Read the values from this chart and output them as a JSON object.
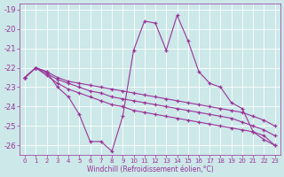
{
  "x": [
    0,
    1,
    2,
    3,
    4,
    5,
    6,
    7,
    8,
    9,
    10,
    11,
    12,
    13,
    14,
    15,
    16,
    17,
    18,
    19,
    20,
    21,
    22,
    23
  ],
  "line1": [
    -22.5,
    -22.0,
    -22.2,
    -23.0,
    -23.5,
    -24.4,
    -25.8,
    -25.8,
    -26.3,
    -24.5,
    -21.1,
    -19.6,
    -19.7,
    -21.1,
    -19.3,
    -20.6,
    -22.2,
    -22.8,
    -23.0,
    -23.8,
    -24.1,
    -25.3,
    -25.7,
    -26.0
  ],
  "line2": [
    -22.5,
    -22.0,
    -22.2,
    -22.5,
    -22.7,
    -22.8,
    -22.9,
    -23.0,
    -23.1,
    -23.2,
    -23.3,
    -23.4,
    -23.5,
    -23.6,
    -23.7,
    -23.8,
    -23.9,
    -24.0,
    -24.1,
    -24.2,
    -24.3,
    -24.5,
    -24.7,
    -25.0
  ],
  "line3": [
    -22.5,
    -22.0,
    -22.3,
    -22.6,
    -22.8,
    -23.0,
    -23.2,
    -23.3,
    -23.5,
    -23.6,
    -23.7,
    -23.8,
    -23.9,
    -24.0,
    -24.1,
    -24.2,
    -24.3,
    -24.4,
    -24.5,
    -24.6,
    -24.8,
    -25.0,
    -25.2,
    -25.5
  ],
  "line4": [
    -22.5,
    -22.0,
    -22.4,
    -22.8,
    -23.1,
    -23.3,
    -23.5,
    -23.7,
    -23.9,
    -24.0,
    -24.2,
    -24.3,
    -24.4,
    -24.5,
    -24.6,
    -24.7,
    -24.8,
    -24.9,
    -25.0,
    -25.1,
    -25.2,
    -25.3,
    -25.5,
    -26.0
  ],
  "color": "#993399",
  "bg_color": "#cce8e8",
  "xlabel": "Windchill (Refroidissement éolien,°C)",
  "ylim": [
    -26.5,
    -18.7
  ],
  "xlim": [
    -0.5,
    23.5
  ],
  "yticks": [
    -19,
    -20,
    -21,
    -22,
    -23,
    -24,
    -25,
    -26
  ],
  "xticks": [
    0,
    1,
    2,
    3,
    4,
    5,
    6,
    7,
    8,
    9,
    10,
    11,
    12,
    13,
    14,
    15,
    16,
    17,
    18,
    19,
    20,
    21,
    22,
    23
  ],
  "marker": "+",
  "markersize": 3.5,
  "linewidth": 0.8
}
